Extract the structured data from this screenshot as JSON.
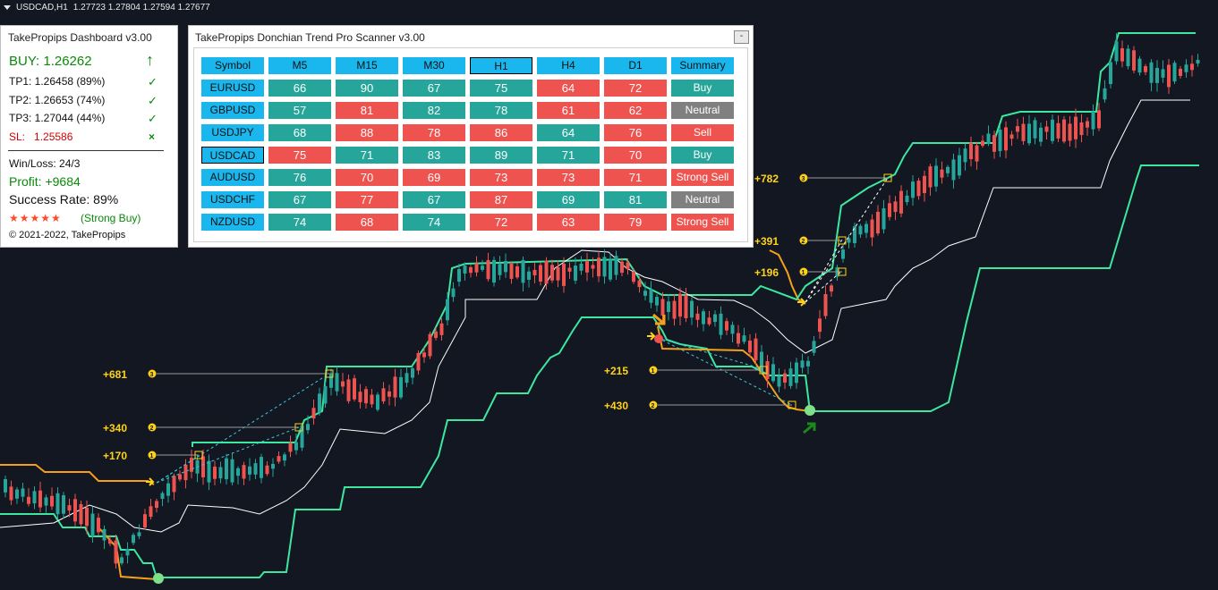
{
  "chart_header": {
    "symbol": "USDCAD,H1",
    "ohlc": "1.27723 1.27804 1.27594 1.27677"
  },
  "dashboard": {
    "title": "TakePropips Dashboard v3.00",
    "buy": "BUY: 1.26262",
    "tp1": "TP1: 1.26458 (89%)",
    "tp2": "TP2: 1.26653 (74%)",
    "tp3": "TP3: 1.27044 (44%)",
    "sl_label": "SL:",
    "sl_value": "1.25586",
    "win_loss": "Win/Loss: 24/3",
    "profit": "Profit: +9684",
    "success_rate": "Success Rate: 89%",
    "stars": "★★★★★",
    "signal": "(Strong Buy)",
    "copyright": "© 2021-2022, TakePropips",
    "check_glyph": "✓",
    "x_glyph": "×",
    "arrow_glyph": "🡡"
  },
  "scanner": {
    "title": "TakePropips Donchian Trend Pro Scanner v3.00",
    "minimize": "-",
    "headers": [
      "Symbol",
      "M5",
      "M15",
      "M30",
      "H1",
      "H4",
      "D1",
      "Summary"
    ],
    "rows": [
      {
        "symbol": "EURUSD",
        "vals": [
          66,
          90,
          67,
          75,
          64,
          72
        ],
        "colors": [
          "g",
          "g",
          "g",
          "g",
          "r",
          "r"
        ],
        "summary": "Buy",
        "sclass": "s-buy"
      },
      {
        "symbol": "GBPUSD",
        "vals": [
          57,
          81,
          82,
          78,
          61,
          62
        ],
        "colors": [
          "g",
          "r",
          "g",
          "g",
          "r",
          "r"
        ],
        "summary": "Neutral",
        "sclass": "s-neu"
      },
      {
        "symbol": "USDJPY",
        "vals": [
          68,
          88,
          78,
          86,
          64,
          76
        ],
        "colors": [
          "g",
          "r",
          "r",
          "r",
          "g",
          "r"
        ],
        "summary": "Sell",
        "sclass": "s-sell"
      },
      {
        "symbol": "USDCAD",
        "vals": [
          75,
          71,
          83,
          89,
          71,
          70
        ],
        "colors": [
          "r",
          "g",
          "g",
          "g",
          "g",
          "r"
        ],
        "summary": "Buy",
        "sclass": "s-buy"
      },
      {
        "symbol": "AUDUSD",
        "vals": [
          76,
          70,
          69,
          73,
          73,
          71
        ],
        "colors": [
          "g",
          "r",
          "r",
          "r",
          "r",
          "r"
        ],
        "summary": "Strong Sell",
        "sclass": "s-sell"
      },
      {
        "symbol": "USDCHF",
        "vals": [
          67,
          77,
          67,
          87,
          69,
          81
        ],
        "colors": [
          "g",
          "r",
          "g",
          "r",
          "g",
          "g"
        ],
        "summary": "Neutral",
        "sclass": "s-neu"
      },
      {
        "symbol": "NZDUSD",
        "vals": [
          74,
          68,
          74,
          72,
          63,
          79
        ],
        "colors": [
          "g",
          "r",
          "g",
          "r",
          "r",
          "r"
        ],
        "summary": "Strong Sell",
        "sclass": "s-sell"
      }
    ]
  },
  "chart_labels": {
    "left": [
      "+681",
      "+340",
      "+170"
    ],
    "middle": [
      "+215",
      "+430"
    ],
    "right": [
      "+782",
      "+391",
      "+196"
    ]
  },
  "colors": {
    "background": "#131722",
    "bull": "#26a69a",
    "bear": "#ef5350",
    "upper_band": "#3ce8a0",
    "lower_band_orange": "#f5a01a",
    "label": "#ffd21a"
  }
}
